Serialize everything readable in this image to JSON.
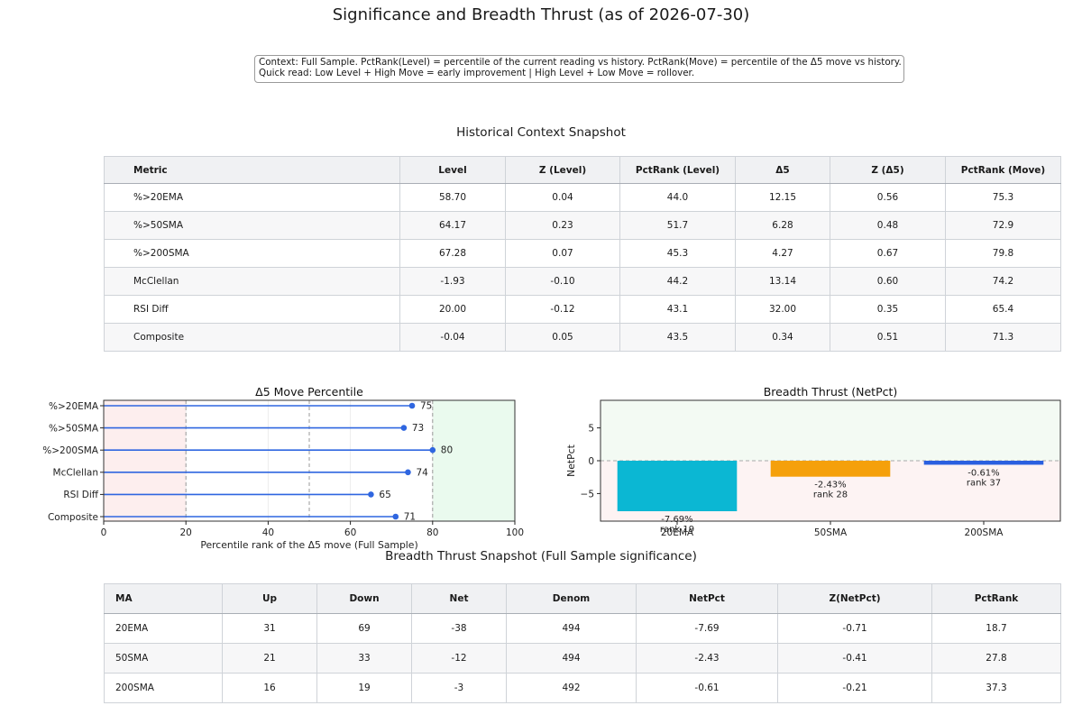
{
  "title": "Significance and Breadth Thrust (as of 2026-07-30)",
  "context": {
    "line1": "Context: Full Sample. PctRank(Level) = percentile of the current reading vs history. PctRank(Move) = percentile of the  Δ5 move vs history.",
    "line2": "Quick read: Low Level + High Move = early improvement | High Level + Low Move = rollover."
  },
  "historical": {
    "title": "Historical Context Snapshot",
    "headers": [
      "Metric",
      "Level",
      "Z (Level)",
      "PctRank (Level)",
      "Δ5",
      "Z (Δ5)",
      "PctRank (Move)"
    ],
    "rows": [
      [
        "%>20EMA",
        "58.70",
        "0.04",
        "44.0",
        "12.15",
        "0.56",
        "75.3"
      ],
      [
        "%>50SMA",
        "64.17",
        "0.23",
        "51.7",
        "6.28",
        "0.48",
        "72.9"
      ],
      [
        "%>200SMA",
        "67.28",
        "0.07",
        "45.3",
        "4.27",
        "0.67",
        "79.8"
      ],
      [
        "McClellan",
        "-1.93",
        "-0.10",
        "44.2",
        "13.14",
        "0.60",
        "74.2"
      ],
      [
        "RSI Diff",
        "20.00",
        "-0.12",
        "43.1",
        "32.00",
        "0.35",
        "65.4"
      ],
      [
        "Composite",
        "-0.04",
        "0.05",
        "43.5",
        "0.34",
        "0.51",
        "71.3"
      ]
    ]
  },
  "thrust_table": {
    "title": "Breadth Thrust Snapshot (Full Sample significance)",
    "headers": [
      "MA",
      "Up",
      "Down",
      "Net",
      "Denom",
      "NetPct",
      "Z(NetPct)",
      "PctRank"
    ],
    "rows": [
      [
        "20EMA",
        "31",
        "69",
        "-38",
        "494",
        "-7.69",
        "-0.71",
        "18.7"
      ],
      [
        "50SMA",
        "21",
        "33",
        "-12",
        "494",
        "-2.43",
        "-0.41",
        "27.8"
      ],
      [
        "200SMA",
        "16",
        "19",
        "-3",
        "492",
        "-0.61",
        "-0.21",
        "37.3"
      ]
    ]
  },
  "chart_data": [
    {
      "type": "scatter",
      "title": "Δ5 Move Percentile",
      "xlabel": "Percentile rank of the Δ5 move (Full Sample)",
      "ylabel": "",
      "xlim": [
        0,
        100
      ],
      "xticks": [
        0,
        20,
        40,
        60,
        80,
        100
      ],
      "categories": [
        "%>20EMA",
        "%>50SMA",
        "%>200SMA",
        "McClellan",
        "RSI Diff",
        "Composite"
      ],
      "values": [
        75,
        73,
        80,
        74,
        65,
        71
      ],
      "value_labels": [
        "75",
        "73",
        "80",
        "74",
        "65",
        "71"
      ],
      "bands": [
        {
          "from": 0,
          "to": 20,
          "color": "#fdeeee"
        },
        {
          "from": 80,
          "to": 100,
          "color": "#eafaee"
        }
      ],
      "reference_lines": [
        20,
        50,
        80
      ],
      "color": "#2f66e0"
    },
    {
      "type": "bar",
      "title": "Breadth Thrust (NetPct)",
      "xlabel": "",
      "ylabel": "NetPct",
      "ylim": [
        -9.2,
        9.2
      ],
      "yticks": [
        5,
        0,
        -5
      ],
      "ytick_labels": [
        "5",
        "0",
        "−5"
      ],
      "categories": [
        "20EMA",
        "50SMA",
        "200SMA"
      ],
      "values": [
        -7.69,
        -2.43,
        -0.61
      ],
      "bar_labels": [
        "-7.69%",
        "-2.43%",
        "-0.61%"
      ],
      "rank_labels": [
        "rank 19",
        "rank 28",
        "rank 37"
      ],
      "colors": [
        "#0bb7d3",
        "#f5a00b",
        "#2a5fe0"
      ],
      "bands": [
        {
          "from": 0,
          "to": 9.2,
          "color": "#f3faf3"
        },
        {
          "from": -9.2,
          "to": 0,
          "color": "#fdf3f3"
        }
      ]
    }
  ]
}
